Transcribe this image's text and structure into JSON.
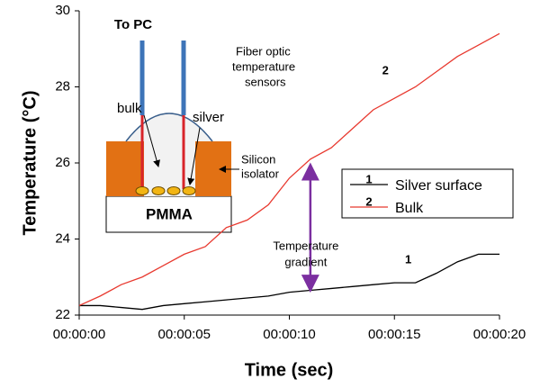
{
  "chart_data": {
    "type": "line",
    "xlabel": "Time (sec)",
    "ylabel": "Temperature (°C)",
    "x": [
      0,
      1,
      2,
      3,
      4,
      5,
      6,
      7,
      8,
      9,
      10,
      11,
      12,
      13,
      14,
      15,
      16,
      17,
      18,
      19,
      20
    ],
    "series": [
      {
        "name": "Silver surface",
        "label": "1",
        "color": "#000000",
        "values": [
          22.25,
          22.25,
          22.2,
          22.15,
          22.25,
          22.3,
          22.35,
          22.4,
          22.45,
          22.5,
          22.6,
          22.65,
          22.7,
          22.75,
          22.8,
          22.85,
          22.85,
          23.1,
          23.4,
          23.6,
          23.6
        ]
      },
      {
        "name": "Bulk",
        "label": "2",
        "color": "#e8392f",
        "values": [
          22.25,
          22.5,
          22.8,
          23.0,
          23.3,
          23.6,
          23.8,
          24.3,
          24.5,
          24.9,
          25.6,
          26.1,
          26.4,
          26.9,
          27.4,
          27.7,
          28.0,
          28.4,
          28.8,
          29.1,
          29.4
        ]
      }
    ],
    "xlim": [
      0,
      20
    ],
    "xticks": [
      {
        "value": 0,
        "label": "00:00:00"
      },
      {
        "value": 5,
        "label": "00:00:05"
      },
      {
        "value": 10,
        "label": "00:00:10"
      },
      {
        "value": 15,
        "label": "00:00:15"
      },
      {
        "value": 20,
        "label": "00:00:20"
      }
    ],
    "ylim": [
      22,
      30
    ],
    "yticks": [
      22,
      24,
      26,
      28,
      30
    ],
    "legend": "right",
    "gradient_arrow": {
      "x": 11,
      "y": [
        22.6,
        26.0
      ],
      "color": "#7b2fa0",
      "label": [
        "Temperature",
        "gradient"
      ]
    },
    "inset": {
      "to_pc": "To PC",
      "sensors": [
        "Fiber optic",
        "temperature",
        "sensors"
      ],
      "bulk": "bulk",
      "silver": "silver",
      "isolator": [
        "Silicon",
        "isolator"
      ],
      "substrate": "PMMA"
    }
  }
}
